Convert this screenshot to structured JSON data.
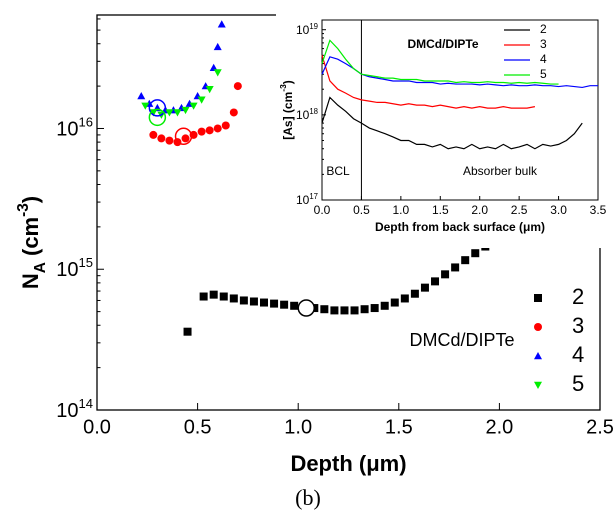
{
  "chart_data": [
    {
      "type": "scatter",
      "x_label": "Depth (μm)",
      "y_label": {
        "text": "N",
        "sub": "A",
        "mid": " (cm",
        "sup": "-3",
        "end": ")"
      },
      "caption": "(b)",
      "log_y": true,
      "legend": "right",
      "annotation": "DMCd/DIPTe",
      "xlim": [
        0,
        2.5
      ],
      "ylim": [
        100000000000000.0,
        6.4e+16
      ],
      "xticks": [
        {
          "value": 0,
          "label": "0.0"
        },
        {
          "value": 0.5,
          "label": "0.5"
        },
        {
          "value": 1,
          "label": "1.0"
        },
        {
          "value": 1.5,
          "label": "1.5"
        },
        {
          "value": 2,
          "label": "2.0"
        },
        {
          "value": 2.5,
          "label": "2.5"
        }
      ],
      "yticks": [
        {
          "value": 100000000000000.0,
          "label": "10",
          "sup": "14"
        },
        {
          "value": 1000000000000000.0,
          "label": "10",
          "sup": "15"
        },
        {
          "value": 1e+16,
          "label": "10",
          "sup": "16"
        }
      ],
      "series": [
        {
          "name": "2",
          "color": "#000000",
          "marker": "square",
          "x": [
            0.45,
            0.53,
            0.58,
            0.63,
            0.68,
            0.73,
            0.78,
            0.83,
            0.88,
            0.93,
            0.98,
            1.03,
            1.08,
            1.13,
            1.18,
            1.23,
            1.28,
            1.33,
            1.38,
            1.43,
            1.48,
            1.53,
            1.58,
            1.63,
            1.68,
            1.73,
            1.78,
            1.83,
            1.88,
            1.93
          ],
          "values": [
            360000000000000.0,
            640000000000000.0,
            660000000000000.0,
            640000000000000.0,
            620000000000000.0,
            600000000000000.0,
            590000000000000.0,
            580000000000000.0,
            570000000000000.0,
            560000000000000.0,
            550000000000000.0,
            540000000000000.0,
            530000000000000.0,
            520000000000000.0,
            510000000000000.0,
            510000000000000.0,
            510000000000000.0,
            520000000000000.0,
            530000000000000.0,
            550000000000000.0,
            580000000000000.0,
            620000000000000.0,
            670000000000000.0,
            740000000000000.0,
            820000000000000.0,
            920000000000000.0,
            1030000000000000.0,
            1160000000000000.0,
            1300000000000000.0,
            1450000000000000.0
          ]
        },
        {
          "name": "3",
          "color": "#ff0000",
          "marker": "circle",
          "x": [
            0.28,
            0.32,
            0.36,
            0.4,
            0.44,
            0.48,
            0.52,
            0.56,
            0.6,
            0.64,
            0.68,
            0.7
          ],
          "values": [
            9000000000000000.0,
            8500000000000000.0,
            8200000000000000.0,
            8000000000000000.0,
            8500000000000000.0,
            9000000000000000.0,
            9500000000000000.0,
            9700000000000000.0,
            1e+16,
            1.05e+16,
            1.3e+16,
            2e+16
          ]
        },
        {
          "name": "4",
          "color": "#0000ff",
          "marker": "triangle",
          "x": [
            0.22,
            0.26,
            0.3,
            0.34,
            0.38,
            0.42,
            0.46,
            0.5,
            0.54,
            0.58,
            0.6,
            0.62
          ],
          "values": [
            1.7e+16,
            1.5e+16,
            1.4e+16,
            1.35e+16,
            1.35e+16,
            1.4e+16,
            1.5e+16,
            1.7e+16,
            2e+16,
            2.7e+16,
            3.8e+16,
            5.5e+16
          ]
        },
        {
          "name": "5",
          "color": "#00ee00",
          "marker": "triangle-down",
          "x": [
            0.24,
            0.28,
            0.32,
            0.36,
            0.4,
            0.44,
            0.48,
            0.52,
            0.56,
            0.6
          ],
          "values": [
            1.45e+16,
            1.3e+16,
            1.25e+16,
            1.3e+16,
            1.3e+16,
            1.35e+16,
            1.45e+16,
            1.6e+16,
            1.9e+16,
            2.5e+16
          ]
        }
      ],
      "highlights": [
        {
          "x": 1.04,
          "y": 530000000000000.0,
          "color": "#000000"
        },
        {
          "x": 0.43,
          "y": 8800000000000000.0,
          "color": "#ff0000"
        },
        {
          "x": 0.3,
          "y": 1.4e+16,
          "color": "#0000ff"
        },
        {
          "x": 0.3,
          "y": 1.2e+16,
          "color": "#00ee00"
        }
      ]
    },
    {
      "type": "line",
      "x_label": "Depth from back surface (μm)",
      "y_label": {
        "text": "[As] (cm",
        "sup": "-3",
        "end": ")"
      },
      "log_y": true,
      "legend": "upper right",
      "annotation": "DMCd/DIPTe",
      "texts": [
        "BCL",
        "Absorber bulk"
      ],
      "vline_x": 0.5,
      "xlim": [
        0,
        3.5
      ],
      "ylim": [
        1e+17,
        1.3e+19
      ],
      "xticks": [
        {
          "value": 0,
          "label": "0.0"
        },
        {
          "value": 0.5,
          "label": "0.5"
        },
        {
          "value": 1,
          "label": "1.0"
        },
        {
          "value": 1.5,
          "label": "1.5"
        },
        {
          "value": 2,
          "label": "2.0"
        },
        {
          "value": 2.5,
          "label": "2.5"
        },
        {
          "value": 3,
          "label": "3.0"
        },
        {
          "value": 3.5,
          "label": "3.5"
        }
      ],
      "yticks": [
        {
          "value": 1e+17,
          "label": "10",
          "sup": "17"
        },
        {
          "value": 1e+18,
          "label": "10",
          "sup": "18"
        },
        {
          "value": 1e+19,
          "label": "10",
          "sup": "19"
        }
      ],
      "series": [
        {
          "name": "2",
          "color": "#000000",
          "x": [
            0,
            0.1,
            0.2,
            0.3,
            0.4,
            0.5,
            0.6,
            0.7,
            0.8,
            0.9,
            1,
            1.1,
            1.2,
            1.3,
            1.4,
            1.5,
            1.6,
            1.7,
            1.8,
            1.9,
            2,
            2.1,
            2.2,
            2.3,
            2.4,
            2.5,
            2.6,
            2.7,
            2.8,
            2.9,
            3,
            3.1,
            3.2,
            3.3
          ],
          "values": [
            8e+17,
            1.6e+18,
            1.3e+18,
            1.1e+18,
            9e+17,
            8e+17,
            7e+17,
            6.5e+17,
            6e+17,
            5.5e+17,
            5e+17,
            5e+17,
            4.5e+17,
            4.5e+17,
            4.2e+17,
            4.5e+17,
            4e+17,
            4.2e+17,
            4e+17,
            4.5e+17,
            4e+17,
            4.2e+17,
            4e+17,
            4.5e+17,
            4e+17,
            4.2e+17,
            4.5e+17,
            4e+17,
            4.5e+17,
            4.3e+17,
            4.5e+17,
            5e+17,
            6e+17,
            8e+17
          ]
        },
        {
          "name": "3",
          "color": "#ff0000",
          "x": [
            0,
            0.1,
            0.2,
            0.3,
            0.4,
            0.5,
            0.6,
            0.7,
            0.8,
            0.9,
            1,
            1.1,
            1.2,
            1.3,
            1.4,
            1.5,
            1.6,
            1.7,
            1.8,
            1.9,
            2,
            2.1,
            2.2,
            2.3,
            2.4,
            2.5,
            2.6,
            2.7
          ],
          "values": [
            5e+18,
            2.5e+18,
            2e+18,
            1.8e+18,
            1.6e+18,
            1.5e+18,
            1.45e+18,
            1.4e+18,
            1.4e+18,
            1.35e+18,
            1.3e+18,
            1.35e+18,
            1.3e+18,
            1.3e+18,
            1.25e+18,
            1.3e+18,
            1.25e+18,
            1.2e+18,
            1.25e+18,
            1.2e+18,
            1.25e+18,
            1.2e+18,
            1.2e+18,
            1.25e+18,
            1.2e+18,
            1.2e+18,
            1.2e+18,
            1.25e+18
          ]
        },
        {
          "name": "4",
          "color": "#0000ff",
          "x": [
            0,
            0.1,
            0.2,
            0.3,
            0.4,
            0.5,
            0.6,
            0.7,
            0.8,
            0.9,
            1,
            1.1,
            1.2,
            1.3,
            1.4,
            1.5,
            1.6,
            1.7,
            1.8,
            1.9,
            2,
            2.1,
            2.2,
            2.3,
            2.4,
            2.5,
            2.6,
            2.7,
            2.8,
            2.9,
            3,
            3.1,
            3.2,
            3.3,
            3.4,
            3.5
          ],
          "values": [
            3e+18,
            4.8e+18,
            4.5e+18,
            4e+18,
            3.5e+18,
            3e+18,
            2.8e+18,
            2.7e+18,
            2.6e+18,
            2.5e+18,
            2.5e+18,
            2.5e+18,
            2.4e+18,
            2.4e+18,
            2.4e+18,
            2.3e+18,
            2.35e+18,
            2.3e+18,
            2.3e+18,
            2.3e+18,
            2.25e+18,
            2.3e+18,
            2.25e+18,
            2.2e+18,
            2.25e+18,
            2.2e+18,
            2.2e+18,
            2.25e+18,
            2.2e+18,
            2.2e+18,
            2.15e+18,
            2.2e+18,
            2.15e+18,
            2.1e+18,
            2.2e+18,
            2.2e+18
          ]
        },
        {
          "name": "5",
          "color": "#00ee00",
          "x": [
            0,
            0.1,
            0.2,
            0.3,
            0.4,
            0.5,
            0.6,
            0.7,
            0.8,
            0.9,
            1,
            1.1,
            1.2,
            1.3,
            1.4,
            1.5,
            1.6,
            1.7,
            1.8,
            1.9,
            2,
            2.1,
            2.2,
            2.3,
            2.4,
            2.5,
            2.6,
            2.7,
            2.8,
            2.9,
            3
          ],
          "values": [
            4e+18,
            7.5e+18,
            6e+18,
            4.5e+18,
            3.5e+18,
            3e+18,
            2.9e+18,
            2.8e+18,
            2.7e+18,
            2.7e+18,
            2.6e+18,
            2.6e+18,
            2.6e+18,
            2.5e+18,
            2.5e+18,
            2.5e+18,
            2.5e+18,
            2.4e+18,
            2.45e+18,
            2.4e+18,
            2.4e+18,
            2.45e+18,
            2.4e+18,
            2.4e+18,
            2.35e+18,
            2.4e+18,
            2.35e+18,
            2.4e+18,
            2.35e+18,
            2.3e+18,
            2.3e+18
          ]
        }
      ]
    }
  ]
}
